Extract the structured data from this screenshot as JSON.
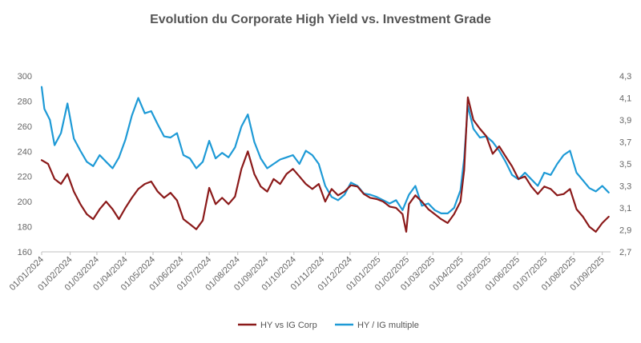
{
  "chart_data": {
    "type": "line",
    "title": "Evolution du Corporate High Yield vs. Investment Grade",
    "x_tick_labels": [
      "01/01/2024",
      "01/02/2024",
      "01/03/2024",
      "01/04/2024",
      "01/05/2024",
      "01/06/2024",
      "01/07/2024",
      "01/08/2024",
      "01/09/2024",
      "01/10/2024",
      "01/11/2024",
      "01/12/2024",
      "01/01/2025",
      "01/02/2025",
      "01/03/2025",
      "01/04/2025",
      "01/05/2025",
      "01/06/2025",
      "01/07/2025",
      "01/08/2025",
      "01/09/2025"
    ],
    "y_left": {
      "min": 160,
      "max": 300,
      "ticks": [
        160,
        180,
        200,
        220,
        240,
        260,
        280,
        300
      ]
    },
    "y_right": {
      "min": 2.7,
      "max": 4.3,
      "ticks": [
        "2,7",
        "2,9",
        "3,1",
        "3,3",
        "3,5",
        "3,7",
        "3,9",
        "4,1",
        "4,3"
      ]
    },
    "legend_position": "bottom",
    "grid": false,
    "series": [
      {
        "name": "HY vs IG Corp",
        "axis": "left",
        "color": "#8B1A1A",
        "points": [
          [
            "2024-01-01",
            233
          ],
          [
            "2024-01-08",
            230
          ],
          [
            "2024-01-15",
            218
          ],
          [
            "2024-01-22",
            214
          ],
          [
            "2024-01-29",
            222
          ],
          [
            "2024-02-05",
            208
          ],
          [
            "2024-02-12",
            198
          ],
          [
            "2024-02-19",
            190
          ],
          [
            "2024-02-26",
            186
          ],
          [
            "2024-03-04",
            194
          ],
          [
            "2024-03-11",
            200
          ],
          [
            "2024-03-18",
            194
          ],
          [
            "2024-03-25",
            186
          ],
          [
            "2024-04-01",
            195
          ],
          [
            "2024-04-08",
            203
          ],
          [
            "2024-04-15",
            210
          ],
          [
            "2024-04-22",
            214
          ],
          [
            "2024-04-29",
            216
          ],
          [
            "2024-05-06",
            208
          ],
          [
            "2024-05-13",
            203
          ],
          [
            "2024-05-20",
            207
          ],
          [
            "2024-05-27",
            201
          ],
          [
            "2024-06-03",
            186
          ],
          [
            "2024-06-10",
            182
          ],
          [
            "2024-06-17",
            178
          ],
          [
            "2024-06-24",
            185
          ],
          [
            "2024-07-01",
            211
          ],
          [
            "2024-07-08",
            198
          ],
          [
            "2024-07-15",
            203
          ],
          [
            "2024-07-22",
            198
          ],
          [
            "2024-07-29",
            204
          ],
          [
            "2024-08-05",
            226
          ],
          [
            "2024-08-12",
            240
          ],
          [
            "2024-08-19",
            222
          ],
          [
            "2024-08-26",
            212
          ],
          [
            "2024-09-02",
            208
          ],
          [
            "2024-09-09",
            218
          ],
          [
            "2024-09-16",
            214
          ],
          [
            "2024-09-23",
            222
          ],
          [
            "2024-09-30",
            226
          ],
          [
            "2024-10-07",
            220
          ],
          [
            "2024-10-14",
            214
          ],
          [
            "2024-10-21",
            210
          ],
          [
            "2024-10-28",
            214
          ],
          [
            "2024-11-04",
            200
          ],
          [
            "2024-11-11",
            210
          ],
          [
            "2024-11-18",
            205
          ],
          [
            "2024-11-25",
            208
          ],
          [
            "2024-12-02",
            213
          ],
          [
            "2024-12-09",
            212
          ],
          [
            "2024-12-16",
            206
          ],
          [
            "2024-12-23",
            203
          ],
          [
            "2024-12-30",
            202
          ],
          [
            "2025-01-06",
            200
          ],
          [
            "2025-01-13",
            196
          ],
          [
            "2025-01-20",
            195
          ],
          [
            "2025-01-27",
            190
          ],
          [
            "2025-01-31",
            176
          ],
          [
            "2025-02-03",
            198
          ],
          [
            "2025-02-10",
            205
          ],
          [
            "2025-02-17",
            200
          ],
          [
            "2025-02-24",
            194
          ],
          [
            "2025-03-03",
            190
          ],
          [
            "2025-03-10",
            186
          ],
          [
            "2025-03-17",
            183
          ],
          [
            "2025-03-24",
            190
          ],
          [
            "2025-03-31",
            200
          ],
          [
            "2025-04-04",
            225
          ],
          [
            "2025-04-08",
            283
          ],
          [
            "2025-04-14",
            265
          ],
          [
            "2025-04-21",
            258
          ],
          [
            "2025-04-28",
            252
          ],
          [
            "2025-05-05",
            238
          ],
          [
            "2025-05-12",
            244
          ],
          [
            "2025-05-19",
            236
          ],
          [
            "2025-05-26",
            228
          ],
          [
            "2025-06-02",
            218
          ],
          [
            "2025-06-09",
            220
          ],
          [
            "2025-06-16",
            212
          ],
          [
            "2025-06-23",
            206
          ],
          [
            "2025-06-30",
            212
          ],
          [
            "2025-07-07",
            210
          ],
          [
            "2025-07-14",
            205
          ],
          [
            "2025-07-21",
            206
          ],
          [
            "2025-07-28",
            210
          ],
          [
            "2025-08-04",
            194
          ],
          [
            "2025-08-11",
            188
          ],
          [
            "2025-08-18",
            180
          ],
          [
            "2025-08-25",
            176
          ],
          [
            "2025-09-01",
            183
          ],
          [
            "2025-09-08",
            188
          ]
        ]
      },
      {
        "name": "HY / IG multiple",
        "axis": "right",
        "color": "#1E9AD6",
        "points": [
          [
            "2024-01-01",
            4.2
          ],
          [
            "2024-01-04",
            4.0
          ],
          [
            "2024-01-10",
            3.9
          ],
          [
            "2024-01-15",
            3.67
          ],
          [
            "2024-01-22",
            3.78
          ],
          [
            "2024-01-29",
            4.05
          ],
          [
            "2024-02-05",
            3.73
          ],
          [
            "2024-02-12",
            3.62
          ],
          [
            "2024-02-19",
            3.52
          ],
          [
            "2024-02-26",
            3.48
          ],
          [
            "2024-03-04",
            3.58
          ],
          [
            "2024-03-11",
            3.52
          ],
          [
            "2024-03-18",
            3.46
          ],
          [
            "2024-03-25",
            3.56
          ],
          [
            "2024-04-01",
            3.72
          ],
          [
            "2024-04-08",
            3.94
          ],
          [
            "2024-04-15",
            4.1
          ],
          [
            "2024-04-22",
            3.96
          ],
          [
            "2024-04-29",
            3.98
          ],
          [
            "2024-05-06",
            3.86
          ],
          [
            "2024-05-13",
            3.75
          ],
          [
            "2024-05-20",
            3.74
          ],
          [
            "2024-05-27",
            3.78
          ],
          [
            "2024-06-03",
            3.58
          ],
          [
            "2024-06-10",
            3.55
          ],
          [
            "2024-06-17",
            3.46
          ],
          [
            "2024-06-24",
            3.52
          ],
          [
            "2024-07-01",
            3.71
          ],
          [
            "2024-07-08",
            3.55
          ],
          [
            "2024-07-15",
            3.6
          ],
          [
            "2024-07-22",
            3.56
          ],
          [
            "2024-07-29",
            3.65
          ],
          [
            "2024-08-05",
            3.84
          ],
          [
            "2024-08-12",
            3.95
          ],
          [
            "2024-08-19",
            3.7
          ],
          [
            "2024-08-26",
            3.55
          ],
          [
            "2024-09-02",
            3.46
          ],
          [
            "2024-09-09",
            3.5
          ],
          [
            "2024-09-16",
            3.54
          ],
          [
            "2024-09-23",
            3.56
          ],
          [
            "2024-09-30",
            3.58
          ],
          [
            "2024-10-07",
            3.5
          ],
          [
            "2024-10-14",
            3.62
          ],
          [
            "2024-10-21",
            3.58
          ],
          [
            "2024-10-28",
            3.5
          ],
          [
            "2024-11-04",
            3.3
          ],
          [
            "2024-11-11",
            3.2
          ],
          [
            "2024-11-18",
            3.17
          ],
          [
            "2024-11-25",
            3.22
          ],
          [
            "2024-12-02",
            3.33
          ],
          [
            "2024-12-09",
            3.3
          ],
          [
            "2024-12-16",
            3.23
          ],
          [
            "2024-12-23",
            3.22
          ],
          [
            "2024-12-30",
            3.2
          ],
          [
            "2025-01-06",
            3.17
          ],
          [
            "2025-01-13",
            3.14
          ],
          [
            "2025-01-20",
            3.17
          ],
          [
            "2025-01-27",
            3.08
          ],
          [
            "2025-02-03",
            3.22
          ],
          [
            "2025-02-10",
            3.3
          ],
          [
            "2025-02-17",
            3.12
          ],
          [
            "2025-02-24",
            3.14
          ],
          [
            "2025-03-03",
            3.08
          ],
          [
            "2025-03-10",
            3.05
          ],
          [
            "2025-03-17",
            3.05
          ],
          [
            "2025-03-24",
            3.1
          ],
          [
            "2025-03-31",
            3.26
          ],
          [
            "2025-04-04",
            3.55
          ],
          [
            "2025-04-08",
            4.03
          ],
          [
            "2025-04-14",
            3.82
          ],
          [
            "2025-04-21",
            3.74
          ],
          [
            "2025-04-28",
            3.75
          ],
          [
            "2025-05-05",
            3.7
          ],
          [
            "2025-05-12",
            3.62
          ],
          [
            "2025-05-19",
            3.52
          ],
          [
            "2025-05-26",
            3.4
          ],
          [
            "2025-06-02",
            3.36
          ],
          [
            "2025-06-09",
            3.42
          ],
          [
            "2025-06-16",
            3.36
          ],
          [
            "2025-06-23",
            3.3
          ],
          [
            "2025-06-30",
            3.42
          ],
          [
            "2025-07-07",
            3.4
          ],
          [
            "2025-07-14",
            3.5
          ],
          [
            "2025-07-21",
            3.58
          ],
          [
            "2025-07-28",
            3.62
          ],
          [
            "2025-08-04",
            3.42
          ],
          [
            "2025-08-11",
            3.35
          ],
          [
            "2025-08-18",
            3.28
          ],
          [
            "2025-08-25",
            3.25
          ],
          [
            "2025-09-01",
            3.3
          ],
          [
            "2025-09-08",
            3.24
          ]
        ]
      }
    ]
  }
}
